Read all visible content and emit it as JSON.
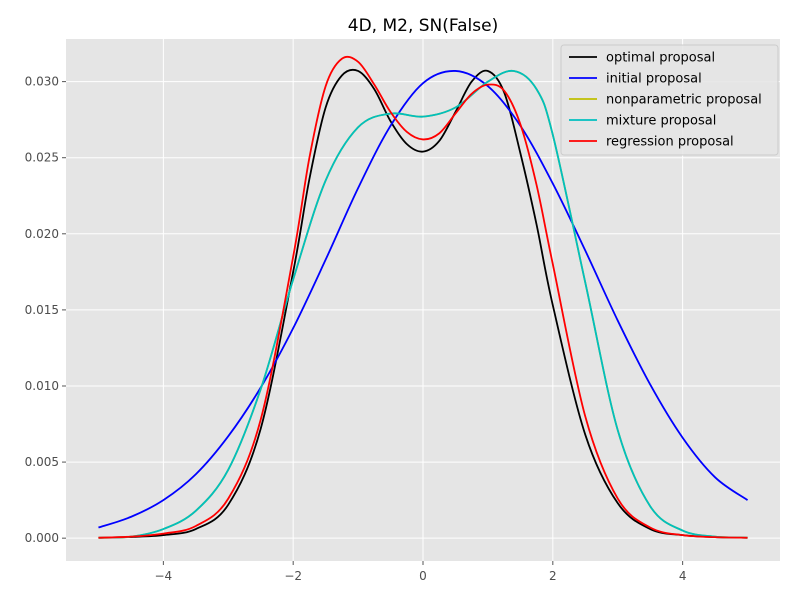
{
  "chart_data": {
    "type": "line",
    "title": "4D, M2, SN(False)",
    "xlabel": "",
    "ylabel": "",
    "xlim": [
      -5.5,
      5.5
    ],
    "ylim": [
      -0.0015,
      0.0328
    ],
    "x_ticks": [
      -4,
      -2,
      0,
      2,
      4
    ],
    "x_tick_labels": [
      "−4",
      "−2",
      "0",
      "2",
      "4"
    ],
    "y_ticks": [
      0.0,
      0.005,
      0.01,
      0.015,
      0.02,
      0.025,
      0.03
    ],
    "y_tick_labels": [
      "0.000",
      "0.005",
      "0.010",
      "0.015",
      "0.020",
      "0.025",
      "0.030"
    ],
    "grid": true,
    "legend_position": "top-right",
    "series": [
      {
        "name": "optimal proposal",
        "color": "#000000",
        "x": [
          -5,
          -4.5,
          -4,
          -3.5,
          -3,
          -2.5,
          -2,
          -1.75,
          -1.5,
          -1.25,
          -1,
          -0.75,
          -0.5,
          -0.25,
          0,
          0.25,
          0.5,
          0.75,
          1,
          1.25,
          1.5,
          1.75,
          2,
          2.5,
          3,
          3.5,
          4,
          4.5,
          5
        ],
        "y": [
          3e-05,
          8e-05,
          0.0002,
          0.0006,
          0.0022,
          0.0072,
          0.0175,
          0.0236,
          0.0283,
          0.0304,
          0.0307,
          0.0295,
          0.0274,
          0.0259,
          0.0254,
          0.0261,
          0.028,
          0.03,
          0.0307,
          0.0293,
          0.0253,
          0.0206,
          0.0153,
          0.0068,
          0.0023,
          0.0006,
          0.0002,
          7e-05,
          3e-05
        ]
      },
      {
        "name": "initial proposal",
        "color": "#0000ff",
        "x": [
          -5,
          -4.5,
          -4,
          -3.5,
          -3,
          -2.5,
          -2,
          -1.5,
          -1,
          -0.5,
          0,
          0.5,
          1,
          1.5,
          2,
          2.5,
          3,
          3.5,
          4,
          4.5,
          5
        ],
        "y": [
          0.0007,
          0.0014,
          0.0025,
          0.0042,
          0.0067,
          0.0099,
          0.0138,
          0.0183,
          0.023,
          0.0271,
          0.0299,
          0.0307,
          0.0297,
          0.0271,
          0.0233,
          0.0189,
          0.0143,
          0.0101,
          0.0066,
          0.004,
          0.0025
        ]
      },
      {
        "name": "nonparametric proposal",
        "color": "#bfbf00",
        "x": [
          -5,
          -4.5,
          -4,
          -3.5,
          -3,
          -2.5,
          -2,
          -1.5,
          -1,
          -0.5,
          0,
          0.5,
          1,
          1.4,
          1.75,
          2,
          2.5,
          3,
          3.5,
          4,
          4.5,
          5
        ],
        "y": [
          3e-05,
          0.0001,
          0.0006,
          0.0018,
          0.0045,
          0.0098,
          0.017,
          0.0235,
          0.027,
          0.0279,
          0.0277,
          0.0283,
          0.03,
          0.0307,
          0.0295,
          0.0265,
          0.0168,
          0.0071,
          0.0021,
          0.0005,
          0.0001,
          3e-05
        ]
      },
      {
        "name": "mixture proposal",
        "color": "#00bfbf",
        "x": [
          -5,
          -4.5,
          -4,
          -3.5,
          -3,
          -2.5,
          -2,
          -1.5,
          -1,
          -0.5,
          0,
          0.5,
          1,
          1.4,
          1.75,
          2,
          2.5,
          3,
          3.5,
          4,
          4.5,
          5
        ],
        "y": [
          3e-05,
          0.0001,
          0.0006,
          0.0018,
          0.0045,
          0.0098,
          0.017,
          0.0235,
          0.027,
          0.0279,
          0.0277,
          0.0283,
          0.03,
          0.0307,
          0.0295,
          0.0265,
          0.0168,
          0.0071,
          0.0021,
          0.0005,
          0.0001,
          3e-05
        ]
      },
      {
        "name": "regression proposal",
        "color": "#ff0000",
        "x": [
          -5,
          -4.5,
          -4,
          -3.5,
          -3,
          -2.5,
          -2,
          -1.75,
          -1.5,
          -1.25,
          -1,
          -0.75,
          -0.5,
          -0.25,
          0,
          0.25,
          0.5,
          0.75,
          1,
          1.25,
          1.5,
          1.75,
          2,
          2.5,
          3,
          3.5,
          4,
          4.5,
          5
        ],
        "y": [
          3e-05,
          0.0001,
          0.0003,
          0.0008,
          0.0026,
          0.0078,
          0.0185,
          0.025,
          0.0297,
          0.0315,
          0.0313,
          0.0298,
          0.028,
          0.0267,
          0.0262,
          0.0266,
          0.0279,
          0.0292,
          0.0298,
          0.0294,
          0.0272,
          0.0232,
          0.018,
          0.008,
          0.0026,
          0.0007,
          0.0002,
          7e-05,
          3e-05
        ]
      }
    ]
  }
}
